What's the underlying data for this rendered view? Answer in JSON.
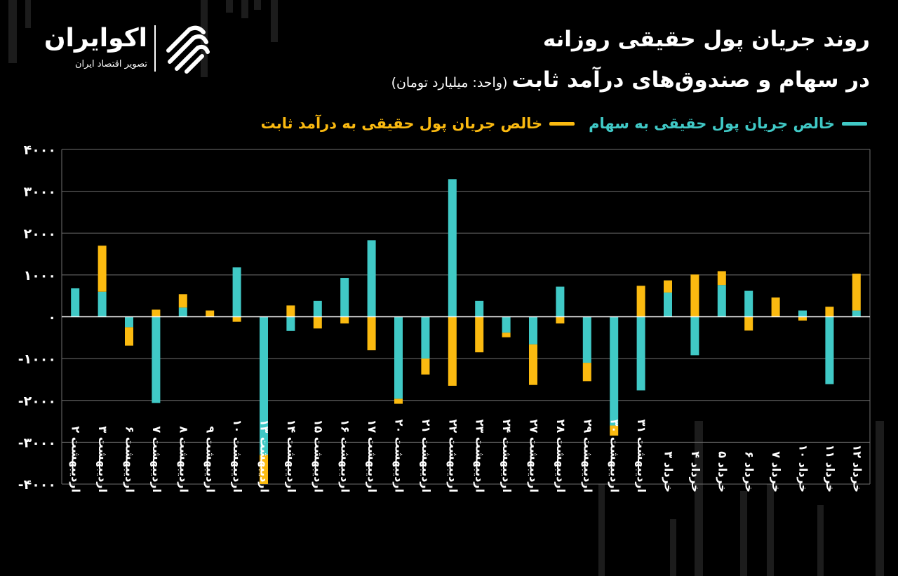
{
  "logo": {
    "name": "اکوایران",
    "tagline": "تصویر اقتصاد ایران"
  },
  "title": {
    "line1": "روند جریان پول حقیقی روزانه",
    "line2": "در سهام و صندوق‌های درآمد ثابت",
    "unit": "(واحد: میلیارد تومان)"
  },
  "colors": {
    "background": "#000000",
    "stocks": "#40c9c6",
    "fixed_income": "#fbba10",
    "grid": "#6f6f6f",
    "text": "#ffffff"
  },
  "chart_data": {
    "type": "bar",
    "stacked": true,
    "ylim": [
      -4000,
      4000
    ],
    "yticks": [
      4000,
      3000,
      2000,
      1000,
      0,
      -1000,
      -2000,
      -3000,
      -4000
    ],
    "ytick_labels": [
      "۴۰۰۰",
      "۳۰۰۰",
      "۲۰۰۰",
      "۱۰۰۰",
      "۰",
      "-۱۰۰۰",
      "-۲۰۰۰",
      "-۳۰۰۰",
      "-۴۰۰۰"
    ],
    "grid": true,
    "legend": "top-right",
    "categories": [
      "اردیبهشت ۲",
      "اردیبهشت ۳",
      "اردیبهشت ۶",
      "اردیبهشت ۷",
      "اردیبهشت ۸",
      "اردیبهشت ۹",
      "اردیبهشت ۱۰",
      "اردیبهشت ۱۳",
      "اردیبهشت ۱۴",
      "اردیبهشت ۱۵",
      "اردیبهشت ۱۶",
      "اردیبهشت ۱۷",
      "اردیبهشت ۲۰",
      "اردیبهشت ۲۱",
      "اردیبهشت ۲۲",
      "اردیبهشت ۲۳",
      "اردیبهشت ۲۴",
      "اردیبهشت ۲۷",
      "اردیبهشت ۲۸",
      "اردیبهشت ۲۹",
      "اردیبهشت ۳۰",
      "اردیبهشت ۳۱",
      "خرداد ۳",
      "خرداد ۴",
      "خرداد ۵",
      "خرداد ۶",
      "خرداد ۷",
      "خرداد ۱۰",
      "خرداد ۱۱",
      "خرداد ۱۲"
    ],
    "series": [
      {
        "name": "خالص جریان پول حقیقی به سهام",
        "color": "#40c9c6",
        "values": [
          680,
          600,
          -250,
          -2060,
          220,
          0,
          1180,
          -3300,
          -340,
          380,
          930,
          1830,
          -1960,
          -1000,
          3290,
          380,
          -380,
          -660,
          720,
          -1100,
          -2600,
          -1760,
          580,
          -920,
          760,
          620,
          0,
          150,
          -1610,
          150
        ]
      },
      {
        "name": "خالص جریان پول حقیقی به درآمد ثابت",
        "color": "#fbba10",
        "values": [
          0,
          1100,
          -440,
          170,
          320,
          150,
          -120,
          -700,
          270,
          -280,
          -160,
          -800,
          -120,
          -380,
          -1650,
          -850,
          -110,
          -970,
          -160,
          -440,
          -240,
          740,
          290,
          1010,
          330,
          -330,
          460,
          -90,
          240,
          880
        ]
      }
    ]
  }
}
